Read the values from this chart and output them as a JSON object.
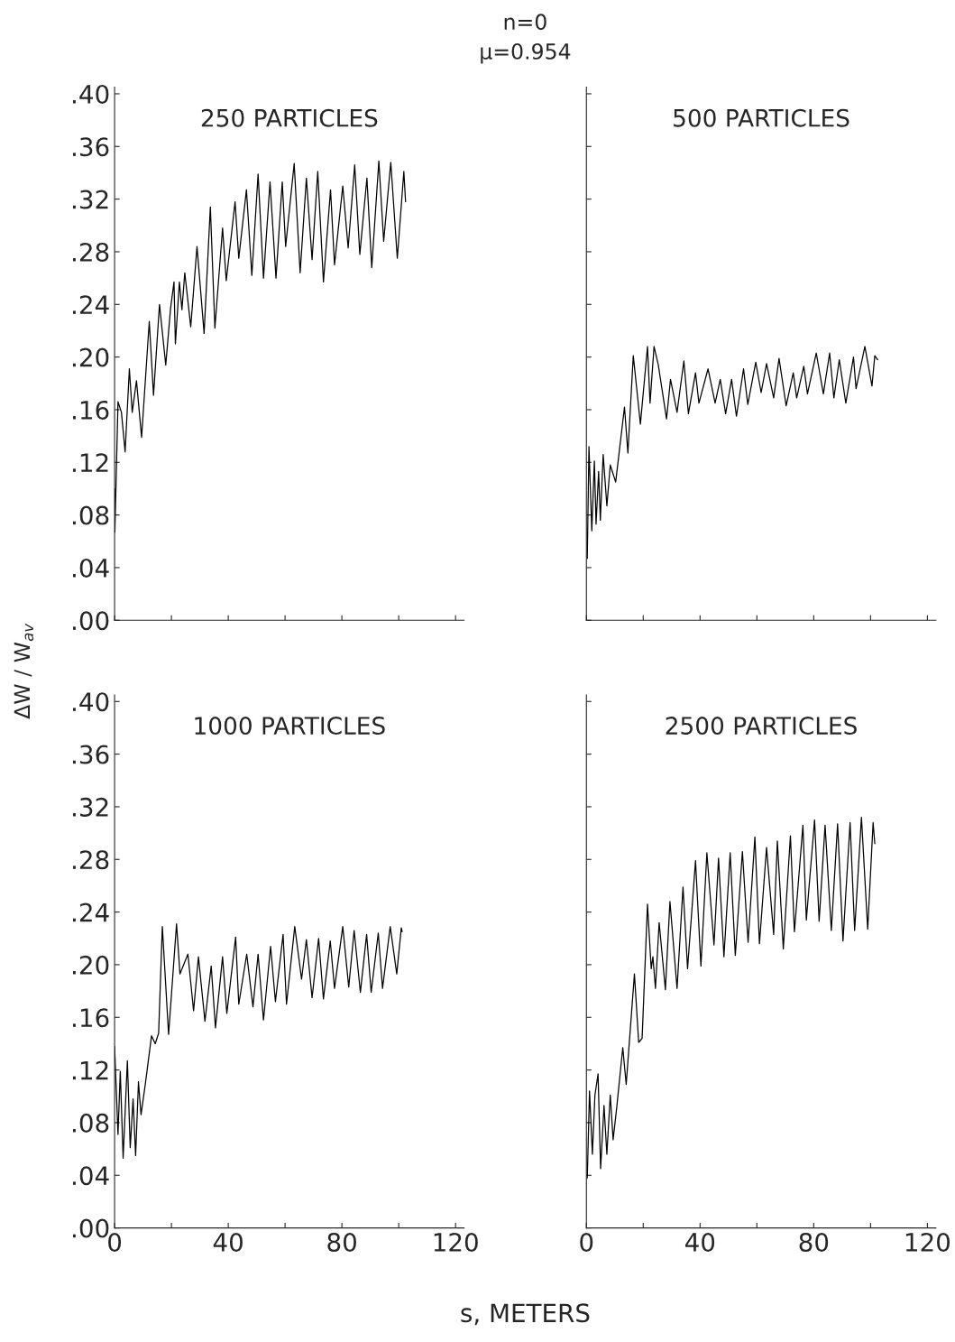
{
  "chart_data": [
    {
      "type": "line",
      "title": "250 PARTICLES",
      "annotations": [
        "n=0",
        "μ=0.954"
      ],
      "xlim": [
        0,
        123
      ],
      "ylim": [
        0,
        0.405
      ],
      "tick_labels": "y",
      "grid": false,
      "xticks": [
        {
          "value": 0,
          "label": null
        },
        {
          "value": 20,
          "label": null
        },
        {
          "value": 40,
          "label": null
        },
        {
          "value": 60,
          "label": null
        },
        {
          "value": 80,
          "label": null
        },
        {
          "value": 100,
          "label": null
        },
        {
          "value": 120,
          "label": null
        }
      ],
      "yticks": [
        {
          "value": 0,
          "label": ".00"
        },
        {
          "value": 0.04,
          "label": ".04"
        },
        {
          "value": 0.08,
          "label": ".08"
        },
        {
          "value": 0.12,
          "label": ".12"
        },
        {
          "value": 0.16,
          "label": ".16"
        },
        {
          "value": 0.2,
          "label": ".20"
        },
        {
          "value": 0.24,
          "label": ".24"
        },
        {
          "value": 0.28,
          "label": ".28"
        },
        {
          "value": 0.32,
          "label": ".32"
        },
        {
          "value": 0.36,
          "label": ".36"
        },
        {
          "value": 0.4,
          "label": ".40"
        }
      ],
      "series": [
        {
          "color": "#000000",
          "x": [
            0,
            0.1,
            1.2,
            2.4,
            3.7,
            5.2,
            6.2,
            7.7,
            9.5,
            12.2,
            13.7,
            15.8,
            18.0,
            19.7,
            20.9,
            21.4,
            22.8,
            23.7,
            24.7,
            26.8,
            29.0,
            31.5,
            33.7,
            35.3,
            38.0,
            39.3,
            42.4,
            43.7,
            46.4,
            48.3,
            50.5,
            52.4,
            54.7,
            56.8,
            59.0,
            60.2,
            63.2,
            65.3,
            67.5,
            69.5,
            71.5,
            73.5,
            76.0,
            77.4,
            80.3,
            82.2,
            84.5,
            86.3,
            88.8,
            90.5,
            93.0,
            94.7,
            97.2,
            99.5,
            101.8,
            102.4
          ],
          "values": [
            0.1,
            0.067,
            0.166,
            0.158,
            0.128,
            0.191,
            0.158,
            0.182,
            0.139,
            0.227,
            0.171,
            0.24,
            0.194,
            0.237,
            0.257,
            0.21,
            0.257,
            0.236,
            0.264,
            0.223,
            0.284,
            0.218,
            0.314,
            0.222,
            0.298,
            0.258,
            0.318,
            0.275,
            0.327,
            0.262,
            0.339,
            0.26,
            0.333,
            0.26,
            0.333,
            0.284,
            0.347,
            0.264,
            0.336,
            0.274,
            0.341,
            0.257,
            0.327,
            0.27,
            0.33,
            0.283,
            0.346,
            0.278,
            0.336,
            0.268,
            0.349,
            0.288,
            0.348,
            0.275,
            0.341,
            0.318
          ]
        }
      ]
    },
    {
      "type": "line",
      "title": "500 PARTICLES",
      "xlim": [
        0,
        123
      ],
      "ylim": [
        0,
        0.405
      ],
      "tick_labels": false,
      "grid": false,
      "xticks": [
        {
          "value": 0,
          "label": null
        },
        {
          "value": 20,
          "label": null
        },
        {
          "value": 40,
          "label": null
        },
        {
          "value": 60,
          "label": null
        },
        {
          "value": 80,
          "label": null
        },
        {
          "value": 100,
          "label": null
        },
        {
          "value": 120,
          "label": null
        }
      ],
      "yticks": [
        {
          "value": 0,
          "label": null
        },
        {
          "value": 0.04,
          "label": null
        },
        {
          "value": 0.08,
          "label": null
        },
        {
          "value": 0.12,
          "label": null
        },
        {
          "value": 0.16,
          "label": null
        },
        {
          "value": 0.2,
          "label": null
        },
        {
          "value": 0.24,
          "label": null
        },
        {
          "value": 0.28,
          "label": null
        },
        {
          "value": 0.32,
          "label": null
        },
        {
          "value": 0.36,
          "label": null
        },
        {
          "value": 0.4,
          "label": null
        }
      ],
      "series": [
        {
          "color": "#000000",
          "x": [
            0.3,
            0.9,
            1.9,
            2.8,
            3.4,
            4.3,
            4.9,
            5.9,
            7.2,
            8.4,
            10.3,
            13.4,
            14.6,
            16.5,
            19.0,
            21.5,
            22.4,
            23.8,
            25.3,
            28.2,
            29.6,
            31.9,
            34.3,
            35.9,
            38.4,
            39.6,
            42.8,
            45.3,
            47.1,
            49.0,
            51.1,
            52.8,
            55.3,
            56.8,
            59.6,
            61.5,
            63.4,
            65.9,
            67.8,
            70.3,
            72.8,
            74.0,
            76.5,
            77.8,
            80.9,
            83.4,
            85.6,
            87.1,
            89.0,
            91.3,
            94.0,
            94.9,
            98.0,
            100.5,
            101.5,
            102.5
          ],
          "values": [
            0.047,
            0.132,
            0.068,
            0.121,
            0.073,
            0.113,
            0.076,
            0.126,
            0.087,
            0.118,
            0.105,
            0.162,
            0.127,
            0.201,
            0.149,
            0.208,
            0.165,
            0.208,
            0.194,
            0.153,
            0.183,
            0.158,
            0.197,
            0.157,
            0.188,
            0.165,
            0.191,
            0.165,
            0.183,
            0.157,
            0.183,
            0.155,
            0.191,
            0.164,
            0.196,
            0.173,
            0.195,
            0.169,
            0.199,
            0.163,
            0.188,
            0.169,
            0.193,
            0.172,
            0.203,
            0.172,
            0.203,
            0.169,
            0.198,
            0.165,
            0.2,
            0.176,
            0.208,
            0.178,
            0.201,
            0.198
          ]
        }
      ]
    },
    {
      "type": "line",
      "title": "1000 PARTICLES",
      "ylabel": "ΔW / W$_{av}$",
      "xlim": [
        0,
        123
      ],
      "ylim": [
        0,
        0.405
      ],
      "grid": false,
      "xticks": [
        0,
        {
          "value": 20,
          "label": null
        },
        40,
        {
          "value": 60,
          "label": null
        },
        80,
        {
          "value": 100,
          "label": null
        },
        120
      ],
      "yticks": [
        {
          "value": 0,
          "label": ".00"
        },
        {
          "value": 0.04,
          "label": ".04"
        },
        {
          "value": 0.08,
          "label": ".08"
        },
        {
          "value": 0.12,
          "label": ".12"
        },
        {
          "value": 0.16,
          "label": ".16"
        },
        {
          "value": 0.2,
          "label": ".20"
        },
        {
          "value": 0.24,
          "label": ".24"
        },
        {
          "value": 0.28,
          "label": ".28"
        },
        {
          "value": 0.32,
          "label": ".32"
        },
        {
          "value": 0.36,
          "label": ".36"
        },
        {
          "value": 0.4,
          "label": ".40"
        }
      ],
      "series": [
        {
          "color": "#000000",
          "x": [
            0,
            1.2,
            2.0,
            3.0,
            4.5,
            5.5,
            6.5,
            7.4,
            8.4,
            9.3,
            10.8,
            13.0,
            14.3,
            15.5,
            16.8,
            19.0,
            21.8,
            23.0,
            25.8,
            27.8,
            29.5,
            31.8,
            34.0,
            35.5,
            38.0,
            39.5,
            42.6,
            43.7,
            46.5,
            48.7,
            50.5,
            52.4,
            54.9,
            56.6,
            59.3,
            60.5,
            63.4,
            65.8,
            67.5,
            69.5,
            71.8,
            73.5,
            75.9,
            77.4,
            80.3,
            82.4,
            84.3,
            86.5,
            88.7,
            90.3,
            92.8,
            94.3,
            97.0,
            99.3,
            100.9,
            101.2
          ],
          "values": [
            0.138,
            0.071,
            0.119,
            0.053,
            0.127,
            0.061,
            0.098,
            0.055,
            0.111,
            0.086,
            0.109,
            0.146,
            0.14,
            0.148,
            0.229,
            0.147,
            0.231,
            0.193,
            0.208,
            0.165,
            0.206,
            0.157,
            0.199,
            0.152,
            0.206,
            0.163,
            0.221,
            0.17,
            0.208,
            0.168,
            0.208,
            0.158,
            0.214,
            0.172,
            0.223,
            0.17,
            0.229,
            0.189,
            0.219,
            0.175,
            0.22,
            0.174,
            0.218,
            0.182,
            0.229,
            0.183,
            0.226,
            0.179,
            0.223,
            0.179,
            0.224,
            0.182,
            0.229,
            0.193,
            0.228,
            0.225
          ]
        }
      ]
    },
    {
      "type": "line",
      "title": "2500 PARTICLES",
      "xlabel": "s, METERS",
      "xlim": [
        0,
        123
      ],
      "ylim": [
        0,
        0.405
      ],
      "tick_labels": "x",
      "grid": false,
      "xticks": [
        0,
        {
          "value": 20,
          "label": null
        },
        40,
        {
          "value": 60,
          "label": null
        },
        80,
        {
          "value": 100,
          "label": null
        },
        120
      ],
      "yticks": [
        {
          "value": 0,
          "label": null
        },
        {
          "value": 0.04,
          "label": null
        },
        {
          "value": 0.08,
          "label": null
        },
        {
          "value": 0.12,
          "label": null
        },
        {
          "value": 0.16,
          "label": null
        },
        {
          "value": 0.2,
          "label": null
        },
        {
          "value": 0.24,
          "label": null
        },
        {
          "value": 0.28,
          "label": null
        },
        {
          "value": 0.32,
          "label": null
        },
        {
          "value": 0.36,
          "label": null
        },
        {
          "value": 0.4,
          "label": null
        }
      ],
      "series": [
        {
          "color": "#000000",
          "x": [
            0.3,
            1.1,
            2.1,
            3.0,
            4.1,
            5.0,
            6.2,
            7.2,
            8.4,
            9.4,
            10.7,
            12.8,
            14.0,
            16.9,
            18.4,
            19.6,
            21.5,
            22.8,
            23.4,
            24.3,
            25.6,
            27.8,
            29.4,
            31.9,
            34.0,
            35.6,
            38.4,
            40.3,
            42.4,
            44.9,
            46.5,
            48.4,
            50.6,
            52.4,
            54.9,
            56.9,
            59.3,
            60.9,
            63.4,
            65.9,
            67.2,
            69.3,
            71.8,
            73.2,
            76.2,
            77.4,
            80.3,
            81.9,
            84.0,
            86.2,
            88.4,
            90.3,
            92.8,
            94.4,
            96.8,
            99.0,
            100.9,
            101.5
          ],
          "values": [
            0.038,
            0.104,
            0.056,
            0.101,
            0.117,
            0.045,
            0.093,
            0.056,
            0.101,
            0.067,
            0.092,
            0.137,
            0.109,
            0.193,
            0.141,
            0.144,
            0.246,
            0.197,
            0.206,
            0.182,
            0.232,
            0.181,
            0.248,
            0.182,
            0.259,
            0.197,
            0.279,
            0.199,
            0.285,
            0.215,
            0.281,
            0.206,
            0.285,
            0.207,
            0.286,
            0.217,
            0.297,
            0.216,
            0.289,
            0.223,
            0.294,
            0.212,
            0.298,
            0.225,
            0.306,
            0.234,
            0.31,
            0.233,
            0.306,
            0.226,
            0.307,
            0.218,
            0.308,
            0.226,
            0.312,
            0.227,
            0.308,
            0.292
          ]
        }
      ]
    }
  ]
}
